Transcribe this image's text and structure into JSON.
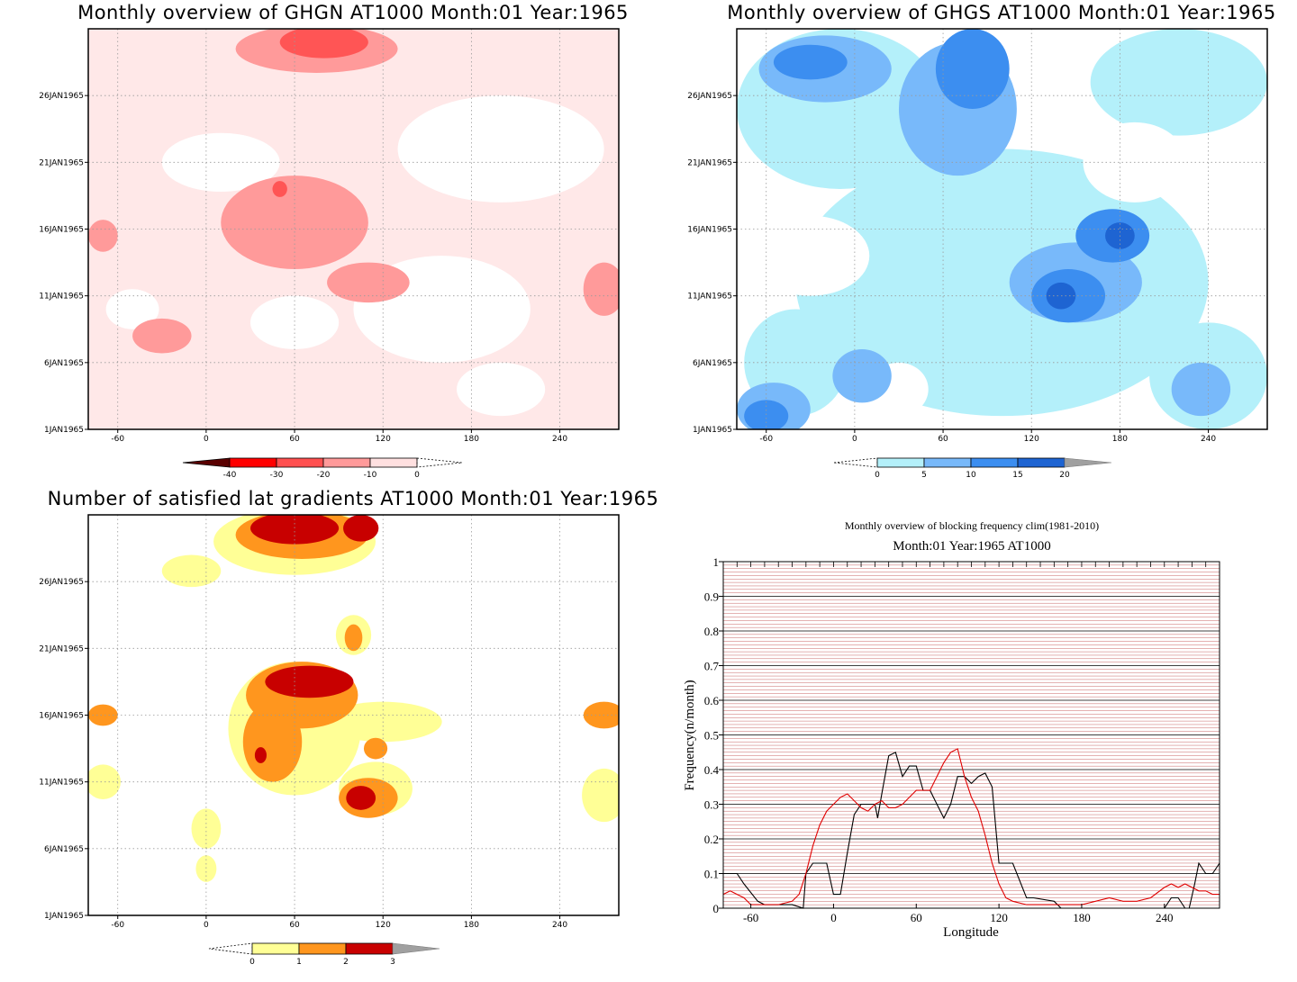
{
  "chart_data": [
    {
      "type": "heatmap",
      "title": "Monthly overview of GHGN AT1000 Month:01 Year:1965",
      "x_ticks": [
        "-60",
        "0",
        "60",
        "120",
        "180",
        "240"
      ],
      "x_tick_values": [
        -60,
        0,
        60,
        120,
        180,
        240
      ],
      "y_ticks": [
        "1JAN1965",
        "6JAN1965",
        "11JAN1965",
        "16JAN1965",
        "21JAN1965",
        "26JAN1965"
      ],
      "y_tick_values": [
        1,
        6,
        11,
        16,
        21,
        26
      ],
      "xlim": [
        -80,
        280
      ],
      "ylim": [
        1,
        31
      ],
      "grid": true,
      "colorbar": {
        "labels": [
          "-40",
          "-30",
          "-20",
          "-10",
          "0"
        ],
        "values": [
          -40,
          -30,
          -20,
          -10,
          0
        ],
        "colors": [
          "#5a0000",
          "#ff0000",
          "#ff5050",
          "#ff9a9a",
          "#ffe0e0"
        ]
      },
      "field": {
        "background": "#ffe8e8",
        "levels": [
          {
            "range": "0 to -10",
            "color": "#ffe8e8"
          },
          {
            "range": "-10 to -20",
            "color": "#ff9a9a"
          },
          {
            "range": "-20 to -30",
            "color": "#ff5555"
          }
        ],
        "blobs": [
          {
            "level": 0,
            "color": "#ffffff",
            "lon": 10,
            "day": 21,
            "rlon": 40,
            "rday": 2.2
          },
          {
            "level": 0,
            "color": "#ffffff",
            "lon": -50,
            "day": 10,
            "rlon": 18,
            "rday": 1.5
          },
          {
            "level": 0,
            "color": "#ffffff",
            "lon": 200,
            "day": 22,
            "rlon": 70,
            "rday": 4
          },
          {
            "level": 0,
            "color": "#ffffff",
            "lon": 160,
            "day": 10,
            "rlon": 60,
            "rday": 4
          },
          {
            "level": 0,
            "color": "#ffffff",
            "lon": 60,
            "day": 9,
            "rlon": 30,
            "rday": 2
          },
          {
            "level": 0,
            "color": "#ffffff",
            "lon": 200,
            "day": 4,
            "rlon": 30,
            "rday": 2
          },
          {
            "level": 1,
            "color": "#ff9a9a",
            "lon": 60,
            "day": 16.5,
            "rlon": 50,
            "rday": 3.5
          },
          {
            "level": 1,
            "color": "#ff9a9a",
            "lon": 75,
            "day": 29.5,
            "rlon": 55,
            "rday": 1.8
          },
          {
            "level": 1,
            "color": "#ff9a9a",
            "lon": 110,
            "day": 12,
            "rlon": 28,
            "rday": 1.5
          },
          {
            "level": 1,
            "color": "#ff9a9a",
            "lon": 270,
            "day": 11.5,
            "rlon": 14,
            "rday": 2
          },
          {
            "level": 1,
            "color": "#ff9a9a",
            "lon": -30,
            "day": 8,
            "rlon": 20,
            "rday": 1.3
          },
          {
            "level": 1,
            "color": "#ff9a9a",
            "lon": -70,
            "day": 15.5,
            "rlon": 10,
            "rday": 1.2
          },
          {
            "level": 2,
            "color": "#ff5555",
            "lon": 80,
            "day": 30,
            "rlon": 30,
            "rday": 1.2
          },
          {
            "level": 2,
            "color": "#ff5555",
            "lon": 50,
            "day": 19,
            "rlon": 5,
            "rday": 0.6
          }
        ]
      }
    },
    {
      "type": "heatmap",
      "title": "Monthly overview of GHGS AT1000 Month:01 Year:1965",
      "x_ticks": [
        "-60",
        "0",
        "60",
        "120",
        "180",
        "240"
      ],
      "x_tick_values": [
        -60,
        0,
        60,
        120,
        180,
        240
      ],
      "y_ticks": [
        "1JAN1965",
        "6JAN1965",
        "11JAN1965",
        "16JAN1965",
        "21JAN1965",
        "26JAN1965"
      ],
      "y_tick_values": [
        1,
        6,
        11,
        16,
        21,
        26
      ],
      "xlim": [
        -80,
        280
      ],
      "ylim": [
        1,
        31
      ],
      "grid": true,
      "colorbar": {
        "labels": [
          "0",
          "5",
          "10",
          "15",
          "20"
        ],
        "values": [
          0,
          5,
          10,
          15,
          20
        ],
        "colors": [
          "#b4f0fa",
          "#78b9fa",
          "#3c8ef0",
          "#1e64d2",
          "#a0a0a0"
        ]
      },
      "field": {
        "background": "#ffffff",
        "blobs": [
          {
            "color": "#b4f0fa",
            "lon": 100,
            "day": 12,
            "rlon": 140,
            "rday": 10
          },
          {
            "color": "#b4f0fa",
            "lon": -10,
            "day": 25,
            "rlon": 70,
            "rday": 6
          },
          {
            "color": "#b4f0fa",
            "lon": 220,
            "day": 27,
            "rlon": 60,
            "rday": 4
          },
          {
            "color": "#b4f0fa",
            "lon": 240,
            "day": 5,
            "rlon": 40,
            "rday": 4
          },
          {
            "color": "#b4f0fa",
            "lon": -40,
            "day": 6,
            "rlon": 35,
            "rday": 4
          },
          {
            "color": "#ffffff",
            "lon": -30,
            "day": 14,
            "rlon": 40,
            "rday": 3
          },
          {
            "color": "#ffffff",
            "lon": 190,
            "day": 21,
            "rlon": 35,
            "rday": 3
          },
          {
            "color": "#ffffff",
            "lon": 30,
            "day": 4,
            "rlon": 20,
            "rday": 2
          },
          {
            "color": "#78b9fa",
            "lon": 70,
            "day": 25,
            "rlon": 40,
            "rday": 5
          },
          {
            "color": "#78b9fa",
            "lon": -20,
            "day": 28,
            "rlon": 45,
            "rday": 2.5
          },
          {
            "color": "#78b9fa",
            "lon": 150,
            "day": 12,
            "rlon": 45,
            "rday": 3
          },
          {
            "color": "#78b9fa",
            "lon": 5,
            "day": 5,
            "rlon": 20,
            "rday": 2
          },
          {
            "color": "#78b9fa",
            "lon": -55,
            "day": 2.5,
            "rlon": 25,
            "rday": 2
          },
          {
            "color": "#78b9fa",
            "lon": 235,
            "day": 4,
            "rlon": 20,
            "rday": 2
          },
          {
            "color": "#3c8ef0",
            "lon": 80,
            "day": 28,
            "rlon": 25,
            "rday": 3
          },
          {
            "color": "#3c8ef0",
            "lon": -30,
            "day": 28.5,
            "rlon": 25,
            "rday": 1.3
          },
          {
            "color": "#3c8ef0",
            "lon": 175,
            "day": 15.5,
            "rlon": 25,
            "rday": 2
          },
          {
            "color": "#3c8ef0",
            "lon": 145,
            "day": 11,
            "rlon": 25,
            "rday": 2
          },
          {
            "color": "#3c8ef0",
            "lon": -60,
            "day": 2,
            "rlon": 15,
            "rday": 1.2
          },
          {
            "color": "#1e64d2",
            "lon": 180,
            "day": 15.5,
            "rlon": 10,
            "rday": 1
          },
          {
            "color": "#1e64d2",
            "lon": 140,
            "day": 11,
            "rlon": 10,
            "rday": 1
          }
        ]
      }
    },
    {
      "type": "heatmap",
      "title": "Number of satisfied lat gradients AT1000 Month:01 Year:1965",
      "x_ticks": [
        "-60",
        "0",
        "60",
        "120",
        "180",
        "240"
      ],
      "x_tick_values": [
        -60,
        0,
        60,
        120,
        180,
        240
      ],
      "y_ticks": [
        "1JAN1965",
        "6JAN1965",
        "11JAN1965",
        "16JAN1965",
        "21JAN1965",
        "26JAN1965"
      ],
      "y_tick_values": [
        1,
        6,
        11,
        16,
        21,
        26
      ],
      "xlim": [
        -80,
        280
      ],
      "ylim": [
        1,
        31
      ],
      "grid": true,
      "colorbar": {
        "labels": [
          "0",
          "1",
          "2",
          "3"
        ],
        "values": [
          0,
          1,
          2,
          3
        ],
        "colors": [
          "#ffff96",
          "#ff961e",
          "#c80000",
          "#a0a0a0"
        ]
      },
      "field": {
        "background": "#ffffff",
        "blobs": [
          {
            "color": "#ffff96",
            "lon": 60,
            "day": 29,
            "rlon": 55,
            "rday": 2.5
          },
          {
            "color": "#ffff96",
            "lon": -10,
            "day": 26.8,
            "rlon": 20,
            "rday": 1.2
          },
          {
            "color": "#ffff96",
            "lon": 60,
            "day": 15,
            "rlon": 45,
            "rday": 5
          },
          {
            "color": "#ffff96",
            "lon": 120,
            "day": 15.5,
            "rlon": 40,
            "rday": 1.5
          },
          {
            "color": "#ffff96",
            "lon": 115,
            "day": 10.5,
            "rlon": 25,
            "rday": 2
          },
          {
            "color": "#ffff96",
            "lon": 270,
            "day": 10,
            "rlon": 15,
            "rday": 2
          },
          {
            "color": "#ffff96",
            "lon": -70,
            "day": 11,
            "rlon": 12,
            "rday": 1.3
          },
          {
            "color": "#ffff96",
            "lon": 0,
            "day": 7.5,
            "rlon": 10,
            "rday": 1.5
          },
          {
            "color": "#ffff96",
            "lon": 100,
            "day": 22,
            "rlon": 12,
            "rday": 1.5
          },
          {
            "color": "#ffff96",
            "lon": 0,
            "day": 4.5,
            "rlon": 7,
            "rday": 1
          },
          {
            "color": "#ff961e",
            "lon": 65,
            "day": 29.5,
            "rlon": 45,
            "rday": 1.8
          },
          {
            "color": "#ff961e",
            "lon": 65,
            "day": 17.5,
            "rlon": 38,
            "rday": 2.5
          },
          {
            "color": "#ff961e",
            "lon": 45,
            "day": 14,
            "rlon": 20,
            "rday": 3
          },
          {
            "color": "#ff961e",
            "lon": 110,
            "day": 9.8,
            "rlon": 20,
            "rday": 1.5
          },
          {
            "color": "#ff961e",
            "lon": 270,
            "day": 16,
            "rlon": 14,
            "rday": 1
          },
          {
            "color": "#ff961e",
            "lon": -70,
            "day": 16,
            "rlon": 10,
            "rday": 0.8
          },
          {
            "color": "#ff961e",
            "lon": 100,
            "day": 21.8,
            "rlon": 6,
            "rday": 1
          },
          {
            "color": "#ff961e",
            "lon": 115,
            "day": 13.5,
            "rlon": 8,
            "rday": 0.8
          },
          {
            "color": "#c80000",
            "lon": 60,
            "day": 30,
            "rlon": 30,
            "rday": 1.2
          },
          {
            "color": "#c80000",
            "lon": 105,
            "day": 30,
            "rlon": 12,
            "rday": 1
          },
          {
            "color": "#c80000",
            "lon": 70,
            "day": 18.5,
            "rlon": 30,
            "rday": 1.2
          },
          {
            "color": "#c80000",
            "lon": 105,
            "day": 9.8,
            "rlon": 10,
            "rday": 0.9
          },
          {
            "color": "#c80000",
            "lon": 37,
            "day": 13,
            "rlon": 4,
            "rday": 0.6
          }
        ]
      }
    },
    {
      "type": "line",
      "title": "Monthly overview of blocking frequency clim(1981-2010)",
      "subtitle": "Month:01 Year:1965  AT1000",
      "xlabel": "Longitude",
      "ylabel": "Frequency(n/month)",
      "x_ticks": [
        "-60",
        "0",
        "60",
        "120",
        "180",
        "240"
      ],
      "x_tick_values": [
        -60,
        0,
        60,
        120,
        180,
        240
      ],
      "y_ticks": [
        "0",
        "0.1",
        "0.2",
        "0.3",
        "0.4",
        "0.5",
        "0.6",
        "0.7",
        "0.8",
        "0.9",
        "1"
      ],
      "y_tick_values": [
        0,
        0.1,
        0.2,
        0.3,
        0.4,
        0.5,
        0.6,
        0.7,
        0.8,
        0.9,
        1
      ],
      "xlim": [
        -80,
        280
      ],
      "ylim": [
        0,
        1
      ],
      "grid": true,
      "grid_colors": {
        "major": "#000000",
        "minor": "#c86464"
      },
      "series": [
        {
          "color": "#000000",
          "x": [
            -80,
            -70,
            -65,
            -55,
            -50,
            -45,
            -30,
            -22,
            -20,
            -15,
            -10,
            -5,
            0,
            5,
            10,
            15,
            20,
            25,
            30,
            32,
            35,
            40,
            45,
            50,
            55,
            60,
            65,
            70,
            75,
            80,
            85,
            90,
            95,
            100,
            105,
            110,
            115,
            120,
            125,
            130,
            140,
            145,
            160,
            165,
            170,
            240,
            245,
            250,
            255,
            258,
            262,
            265,
            270,
            275,
            280
          ],
          "y": [
            0.1,
            0.1,
            0.07,
            0.02,
            0.01,
            0.01,
            0.01,
            0,
            0.1,
            0.13,
            0.13,
            0.13,
            0.04,
            0.04,
            0.16,
            0.27,
            0.3,
            0.3,
            0.3,
            0.26,
            0.33,
            0.44,
            0.45,
            0.38,
            0.41,
            0.41,
            0.34,
            0.34,
            0.3,
            0.26,
            0.3,
            0.38,
            0.38,
            0.36,
            0.38,
            0.39,
            0.35,
            0.13,
            0.13,
            0.13,
            0.03,
            0.03,
            0.02,
            0.0,
            0.0,
            0.0,
            0.03,
            0.03,
            0.0,
            0.0,
            0.07,
            0.13,
            0.1,
            0.1,
            0.13
          ]
        },
        {
          "color": "#e00000",
          "x": [
            -80,
            -75,
            -70,
            -65,
            -60,
            -55,
            -50,
            -40,
            -30,
            -25,
            -20,
            -15,
            -10,
            -5,
            0,
            5,
            10,
            15,
            20,
            25,
            30,
            35,
            40,
            45,
            50,
            55,
            60,
            65,
            70,
            75,
            80,
            85,
            90,
            95,
            100,
            105,
            110,
            115,
            120,
            125,
            130,
            140,
            150,
            160,
            170,
            180,
            190,
            200,
            210,
            220,
            230,
            240,
            245,
            250,
            255,
            260,
            265,
            270,
            275,
            280
          ],
          "y": [
            0.04,
            0.05,
            0.04,
            0.03,
            0.01,
            0.01,
            0.01,
            0.01,
            0.02,
            0.04,
            0.1,
            0.18,
            0.24,
            0.28,
            0.3,
            0.32,
            0.33,
            0.31,
            0.29,
            0.28,
            0.3,
            0.31,
            0.29,
            0.29,
            0.3,
            0.32,
            0.34,
            0.34,
            0.34,
            0.38,
            0.42,
            0.45,
            0.46,
            0.38,
            0.32,
            0.28,
            0.21,
            0.13,
            0.07,
            0.03,
            0.02,
            0.01,
            0.01,
            0.01,
            0.01,
            0.01,
            0.02,
            0.03,
            0.02,
            0.02,
            0.03,
            0.06,
            0.07,
            0.06,
            0.07,
            0.06,
            0.05,
            0.05,
            0.04,
            0.04
          ]
        }
      ]
    }
  ]
}
